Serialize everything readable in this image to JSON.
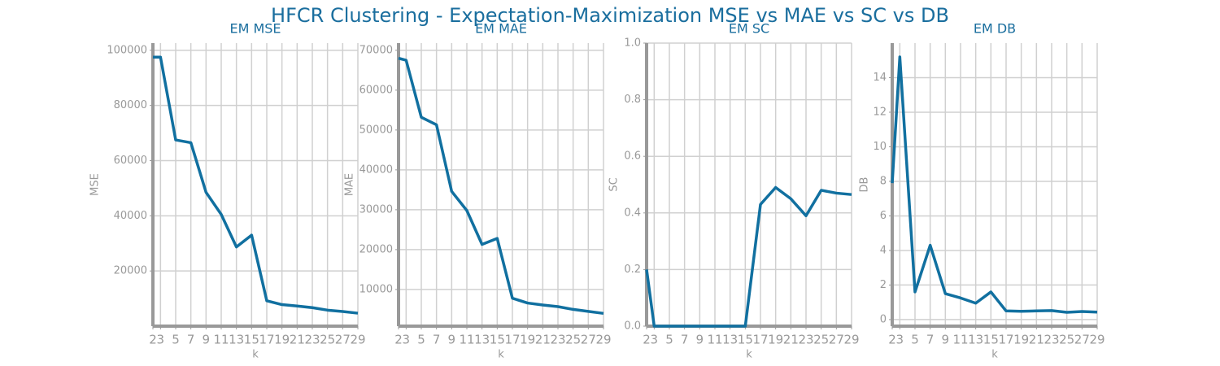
{
  "title": "HFCR Clustering - Expectation-Maximization MSE vs MAE vs SC vs DB",
  "chart_data": [
    {
      "type": "line",
      "title": "EM MSE",
      "x_label": "k",
      "y_label": "MSE",
      "color": "#1170a0",
      "grid": true,
      "x": [
        2,
        3,
        5,
        7,
        9,
        11,
        13,
        15,
        17,
        19,
        21,
        23,
        25,
        27,
        29
      ],
      "values": [
        97500,
        97500,
        67500,
        66500,
        48500,
        40500,
        28700,
        33000,
        9200,
        7800,
        7300,
        6700,
        5800,
        5300,
        4700
      ],
      "xlim": [
        2,
        29
      ],
      "xticks": [
        2,
        3,
        5,
        7,
        9,
        11,
        13,
        15,
        17,
        19,
        21,
        23,
        25,
        27,
        29
      ],
      "ylim": [
        0,
        102600
      ],
      "yticks": [
        20000,
        40000,
        60000,
        80000,
        100000
      ]
    },
    {
      "type": "line",
      "title": "EM MAE",
      "x_label": "k",
      "y_label": "MAE",
      "color": "#1170a0",
      "grid": true,
      "x": [
        2,
        3,
        5,
        7,
        9,
        11,
        13,
        15,
        17,
        19,
        21,
        23,
        25,
        27,
        29
      ],
      "values": [
        68000,
        67500,
        53200,
        51300,
        34600,
        29800,
        21300,
        22800,
        7800,
        6600,
        6100,
        5700,
        5000,
        4500,
        4000
      ],
      "xlim": [
        2,
        29
      ],
      "xticks": [
        2,
        3,
        5,
        7,
        9,
        11,
        13,
        15,
        17,
        19,
        21,
        23,
        25,
        27,
        29
      ],
      "ylim": [
        800,
        71800
      ],
      "yticks": [
        10000,
        20000,
        30000,
        40000,
        50000,
        60000,
        70000
      ]
    },
    {
      "type": "line",
      "title": "EM SC",
      "x_label": "k",
      "y_label": "SC",
      "color": "#1170a0",
      "grid": true,
      "x": [
        2,
        3,
        5,
        7,
        9,
        11,
        13,
        15,
        17,
        19,
        21,
        23,
        25,
        27,
        29
      ],
      "values": [
        0.2,
        0,
        0,
        0,
        0,
        0,
        0,
        0,
        0.43,
        0.49,
        0.45,
        0.39,
        0.48,
        0.47,
        0.465
      ],
      "xlim": [
        2,
        29
      ],
      "xticks": [
        2,
        3,
        5,
        7,
        9,
        11,
        13,
        15,
        17,
        19,
        21,
        23,
        25,
        27,
        29
      ],
      "ylim": [
        0,
        1
      ],
      "yticks": [
        {
          "value": 0,
          "label": "0.0"
        },
        0.2,
        0.4,
        0.6,
        0.8,
        {
          "value": 1,
          "label": "1.0"
        }
      ]
    },
    {
      "type": "line",
      "title": "EM DB",
      "x_label": "k",
      "y_label": "DB",
      "color": "#1170a0",
      "grid": true,
      "x": [
        2,
        3,
        5,
        7,
        9,
        11,
        13,
        15,
        17,
        19,
        21,
        23,
        25,
        27,
        29
      ],
      "values": [
        7.9,
        15.2,
        1.6,
        4.3,
        1.5,
        1.25,
        0.95,
        1.6,
        0.5,
        0.48,
        0.5,
        0.52,
        0.42,
        0.47,
        0.43
      ],
      "xlim": [
        2,
        29
      ],
      "xticks": [
        2,
        3,
        5,
        7,
        9,
        11,
        13,
        15,
        17,
        19,
        21,
        23,
        25,
        27,
        29
      ],
      "ylim": [
        -0.38,
        16
      ],
      "yticks": [
        0,
        2,
        4,
        6,
        8,
        10,
        12,
        14
      ]
    }
  ]
}
